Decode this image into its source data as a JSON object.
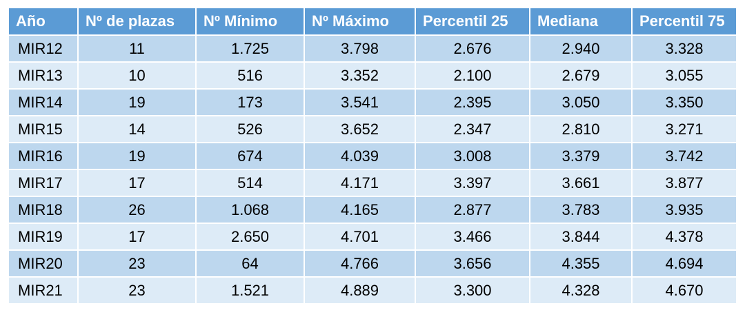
{
  "table": {
    "headers": [
      "Año",
      "Nº de plazas",
      "Nº Mínimo",
      "Nº Máximo",
      "Percentil 25",
      "Mediana",
      "Percentil 75"
    ],
    "rows": [
      [
        "MIR12",
        "11",
        "1.725",
        "3.798",
        "2.676",
        "2.940",
        "3.328"
      ],
      [
        "MIR13",
        "10",
        "516",
        "3.352",
        "2.100",
        "2.679",
        "3.055"
      ],
      [
        "MIR14",
        "19",
        "173",
        "3.541",
        "2.395",
        "3.050",
        "3.350"
      ],
      [
        "MIR15",
        "14",
        "526",
        "3.652",
        "2.347",
        "2.810",
        "3.271"
      ],
      [
        "MIR16",
        "19",
        "674",
        "4.039",
        "3.008",
        "3.379",
        "3.742"
      ],
      [
        "MIR17",
        "17",
        "514",
        "4.171",
        "3.397",
        "3.661",
        "3.877"
      ],
      [
        "MIR18",
        "26",
        "1.068",
        "4.165",
        "2.877",
        "3.783",
        "3.935"
      ],
      [
        "MIR19",
        "17",
        "2.650",
        "4.701",
        "3.466",
        "3.844",
        "4.378"
      ],
      [
        "MIR20",
        "23",
        "64",
        "4.766",
        "3.656",
        "4.355",
        "4.694"
      ],
      [
        "MIR21",
        "23",
        "1.521",
        "4.889",
        "3.300",
        "4.328",
        "4.670"
      ]
    ]
  },
  "colors": {
    "header_bg": "#5b9bd5",
    "row_odd_bg": "#bdd7ee",
    "row_even_bg": "#ddebf7"
  }
}
